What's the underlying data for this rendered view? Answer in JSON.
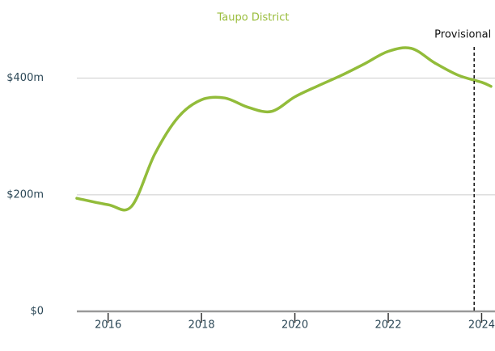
{
  "chart_data": {
    "type": "line",
    "title": "Taupo District",
    "x": [
      2015.33,
      2016.0,
      2016.5,
      2017.0,
      2017.5,
      2018.0,
      2018.5,
      2019.0,
      2019.5,
      2020.0,
      2020.5,
      2021.0,
      2021.5,
      2022.0,
      2022.5,
      2023.0,
      2023.5,
      2024.0,
      2024.2
    ],
    "series": [
      {
        "color": "#92bc3a",
        "values": [
          194,
          183,
          180,
          270,
          333,
          363,
          366,
          350,
          343,
          368,
          387,
          405,
          425,
          446,
          451,
          426,
          405,
          393,
          386
        ]
      }
    ],
    "xlim": [
      2015.33,
      2024.2
    ],
    "xticks": [
      2016,
      2018,
      2020,
      2022,
      2024
    ],
    "ylim": [
      0,
      480
    ],
    "yticks": [
      {
        "value": 0,
        "label": "$0"
      },
      {
        "value": 200,
        "label": "$200m"
      },
      {
        "value": 400,
        "label": "$400m"
      }
    ],
    "grid": true,
    "annotation": {
      "text": "Provisional",
      "x": 2023.84
    }
  }
}
